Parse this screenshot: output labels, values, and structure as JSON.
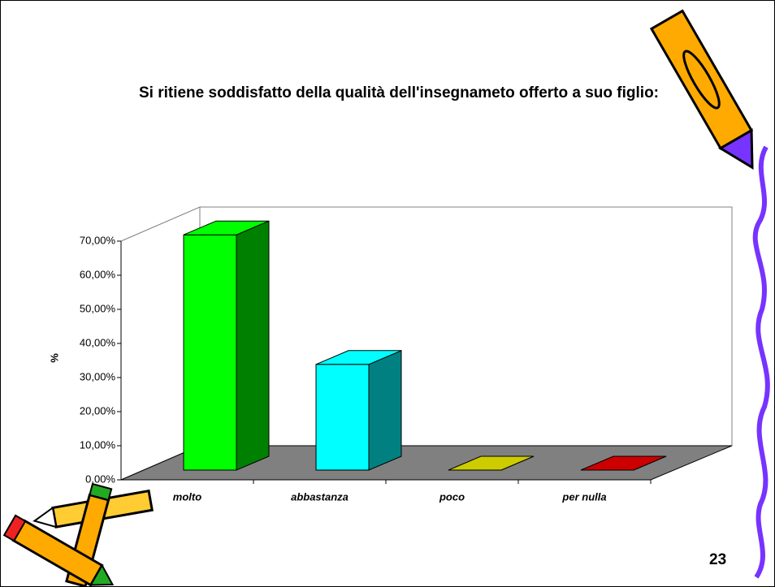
{
  "chart_data": {
    "type": "bar3d",
    "title": "Si ritiene soddisfatto della qualità dell'insegnameto offerto a suo figlio:",
    "y_label": "%",
    "categories": [
      "molto",
      "abbastanza",
      "poco",
      "per nulla"
    ],
    "values": [
      69,
      31,
      0,
      0
    ],
    "colors": [
      "#00ff00",
      "#00ffff",
      "#cccc00",
      "#cc0000"
    ],
    "side_colors": [
      "#008000",
      "#008080",
      "#808000",
      "#800000"
    ],
    "ylim": [
      0,
      70
    ],
    "yticks": [
      {
        "value": 0,
        "label": "0,00%"
      },
      {
        "value": 10,
        "label": "10,00%"
      },
      {
        "value": 20,
        "label": "20,00%"
      },
      {
        "value": 30,
        "label": "30,00%"
      },
      {
        "value": 40,
        "label": "40,00%"
      },
      {
        "value": 50,
        "label": "50,00%"
      },
      {
        "value": 60,
        "label": "60,00%"
      },
      {
        "value": 70,
        "label": "70,00%"
      }
    ]
  },
  "slide": {
    "page_number": 23
  }
}
